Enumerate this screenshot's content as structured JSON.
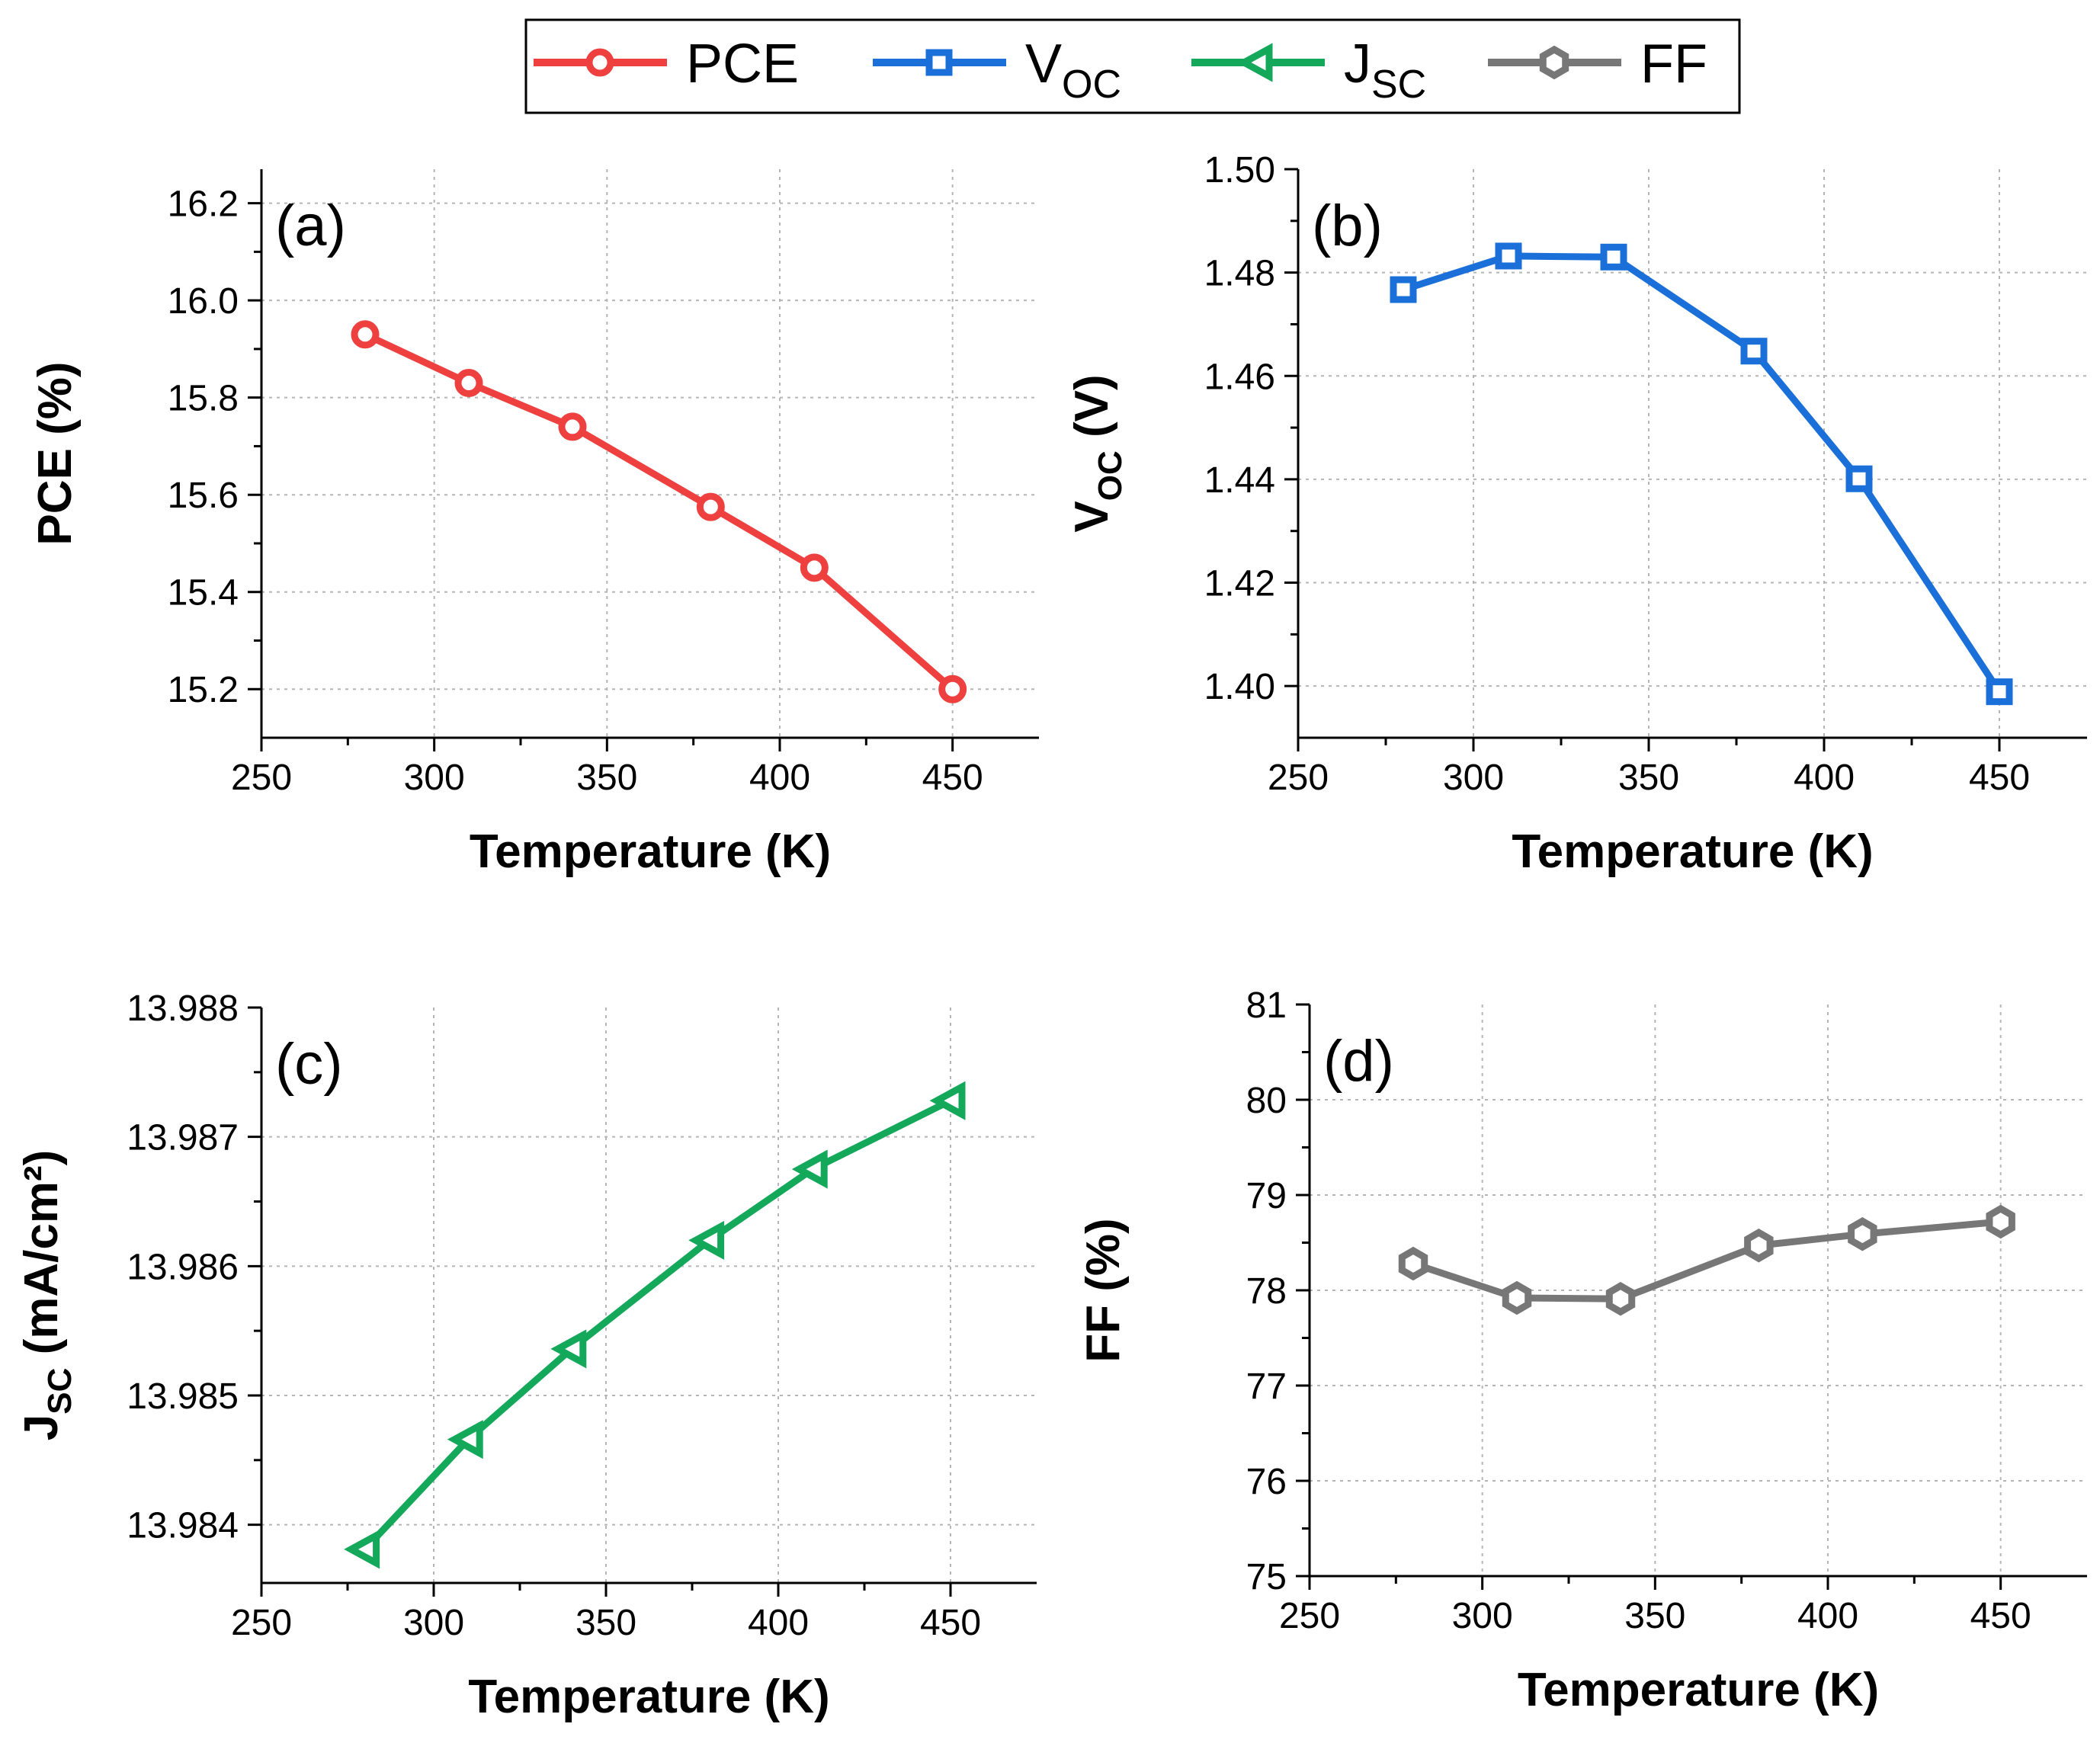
{
  "legend": [
    {
      "main": "PCE",
      "sub": "",
      "color": "#ef4040",
      "marker": "circle"
    },
    {
      "main": "V",
      "sub": "OC",
      "color": "#1a70d8",
      "marker": "square"
    },
    {
      "main": "J",
      "sub": "SC",
      "color": "#13a85a",
      "marker": "triangle-left"
    },
    {
      "main": "FF",
      "sub": "",
      "color": "#777777",
      "marker": "hexagon"
    }
  ],
  "chart_data": [
    {
      "type": "line",
      "panel_label": "(a)",
      "series_name": "PCE",
      "color": "#ef4040",
      "marker": "circle",
      "x": [
        280,
        310,
        340,
        380,
        410,
        450
      ],
      "y": [
        15.93,
        15.83,
        15.74,
        15.575,
        15.45,
        15.2
      ],
      "xlabel": "Temperature (K)",
      "ylabel": {
        "main": "PCE (%)",
        "sub": "",
        "tail": ""
      },
      "xlim": [
        250,
        475
      ],
      "ylim": [
        15.1,
        16.27
      ],
      "xticks": [
        250,
        300,
        350,
        400,
        450
      ],
      "xtick_labels": [
        "250",
        "300",
        "350",
        "400",
        "450"
      ],
      "yticks": [
        15.2,
        15.4,
        15.6,
        15.8,
        16.0,
        16.2
      ],
      "ytick_labels": [
        "15.2",
        "15.4",
        "15.6",
        "15.8",
        "16.0",
        "16.2"
      ],
      "grid": true
    },
    {
      "type": "line",
      "panel_label": "(b)",
      "series_name": "VOC",
      "color": "#1a70d8",
      "marker": "square",
      "x": [
        280,
        310,
        340,
        380,
        410,
        450
      ],
      "y": [
        1.4767,
        1.4832,
        1.483,
        1.4648,
        1.4401,
        1.3989
      ],
      "xlabel": "Temperature (K)",
      "ylabel": {
        "main": "V",
        "sub": "OC",
        "tail": " (V)"
      },
      "xlim": [
        250,
        475
      ],
      "ylim": [
        1.39,
        1.5
      ],
      "xticks": [
        250,
        300,
        350,
        400,
        450
      ],
      "xtick_labels": [
        "250",
        "300",
        "350",
        "400",
        "450"
      ],
      "yticks": [
        1.4,
        1.42,
        1.44,
        1.46,
        1.48,
        1.5
      ],
      "ytick_labels": [
        "1.40",
        "1.42",
        "1.44",
        "1.46",
        "1.48",
        "1.50"
      ],
      "grid": true
    },
    {
      "type": "line",
      "panel_label": "(c)",
      "series_name": "JSC",
      "color": "#13a85a",
      "marker": "triangle-left",
      "x": [
        280,
        310,
        340,
        380,
        410,
        450
      ],
      "y": [
        13.98381,
        13.98466,
        13.98536,
        13.9862,
        13.98675,
        13.98728
      ],
      "xlabel": "Temperature (K)",
      "ylabel": {
        "main": "J",
        "sub": "SC",
        "tail": " (mA/cm²)"
      },
      "xlim": [
        250,
        475
      ],
      "ylim": [
        13.98355,
        13.988
      ],
      "xticks": [
        250,
        300,
        350,
        400,
        450
      ],
      "xtick_labels": [
        "250",
        "300",
        "350",
        "400",
        "450"
      ],
      "yticks": [
        13.984,
        13.985,
        13.986,
        13.987,
        13.988
      ],
      "ytick_labels": [
        "13.984",
        "13.985",
        "13.986",
        "13.987",
        "13.988"
      ],
      "grid": true
    },
    {
      "type": "line",
      "panel_label": "(d)",
      "series_name": "FF",
      "color": "#777777",
      "marker": "hexagon",
      "x": [
        280,
        310,
        340,
        380,
        410,
        450
      ],
      "y": [
        78.28,
        77.92,
        77.91,
        78.47,
        78.59,
        78.72
      ],
      "xlabel": "Temperature (K)",
      "ylabel": {
        "main": "FF (%)",
        "sub": "",
        "tail": ""
      },
      "xlim": [
        250,
        475
      ],
      "ylim": [
        75,
        81
      ],
      "xticks": [
        250,
        300,
        350,
        400,
        450
      ],
      "xtick_labels": [
        "250",
        "300",
        "350",
        "400",
        "450"
      ],
      "yticks": [
        75,
        76,
        77,
        78,
        79,
        80,
        81
      ],
      "ytick_labels": [
        "75",
        "76",
        "77",
        "78",
        "79",
        "80",
        "81"
      ],
      "grid": true
    }
  ]
}
